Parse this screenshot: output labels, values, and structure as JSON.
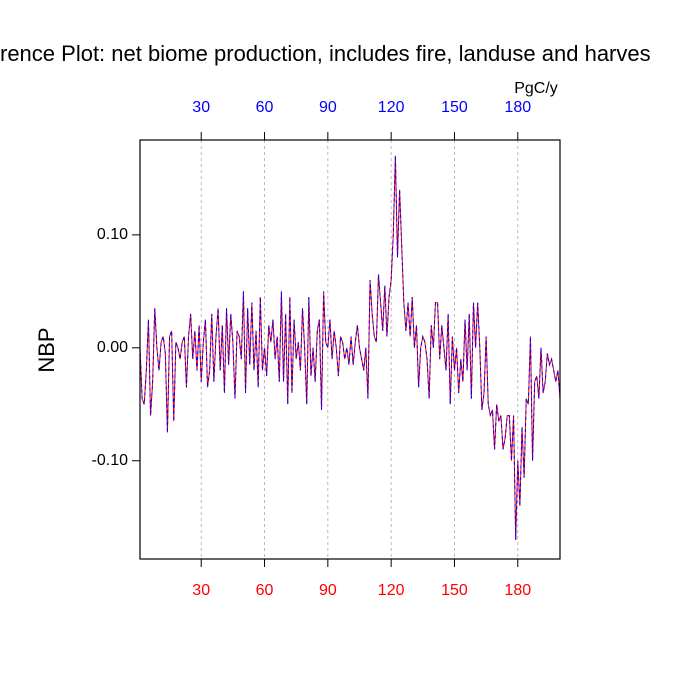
{
  "chart_data": {
    "type": "line",
    "title": "rence Plot: net biome production, includes fire, landuse and harves",
    "ylabel": "NBP",
    "units": "PgC/y",
    "x": [
      1,
      2,
      3,
      4,
      5,
      6,
      7,
      8,
      9,
      10,
      11,
      12,
      13,
      14,
      15,
      16,
      17,
      18,
      19,
      20,
      21,
      22,
      23,
      24,
      25,
      26,
      27,
      28,
      29,
      30,
      31,
      32,
      33,
      34,
      35,
      36,
      37,
      38,
      39,
      40,
      41,
      42,
      43,
      44,
      45,
      46,
      47,
      48,
      49,
      50,
      51,
      52,
      53,
      54,
      55,
      56,
      57,
      58,
      59,
      60,
      61,
      62,
      63,
      64,
      65,
      66,
      67,
      68,
      69,
      70,
      71,
      72,
      73,
      74,
      75,
      76,
      77,
      78,
      79,
      80,
      81,
      82,
      83,
      84,
      85,
      86,
      87,
      88,
      89,
      90,
      91,
      92,
      93,
      94,
      95,
      96,
      97,
      98,
      99,
      100,
      101,
      102,
      103,
      104,
      105,
      106,
      107,
      108,
      109,
      110,
      111,
      112,
      113,
      114,
      115,
      116,
      117,
      118,
      119,
      120,
      121,
      122,
      123,
      124,
      125,
      126,
      127,
      128,
      129,
      130,
      131,
      132,
      133,
      134,
      135,
      136,
      137,
      138,
      139,
      140,
      141,
      142,
      143,
      144,
      145,
      146,
      147,
      148,
      149,
      150,
      151,
      152,
      153,
      154,
      155,
      156,
      157,
      158,
      159,
      160,
      161,
      162,
      163,
      164,
      165,
      166,
      167,
      168,
      169,
      170,
      171,
      172,
      173,
      174,
      175,
      176,
      177,
      178,
      179,
      180,
      181,
      182,
      183,
      184,
      185,
      186,
      187,
      188,
      189,
      190,
      191,
      192,
      193,
      194,
      195,
      196,
      197,
      198,
      199,
      200
    ],
    "series": [
      {
        "color": "#ff0000",
        "values": [
          0.0,
          -0.045,
          -0.05,
          -0.02,
          0.025,
          -0.06,
          -0.03,
          0.035,
          0.0,
          -0.02,
          0.005,
          0.01,
          -0.005,
          -0.075,
          0.01,
          0.015,
          -0.065,
          0.005,
          0.0,
          -0.01,
          0.005,
          0.01,
          -0.035,
          0.01,
          0.03,
          -0.01,
          0.015,
          -0.02,
          0.02,
          -0.03,
          0.005,
          0.025,
          -0.035,
          -0.02,
          0.03,
          -0.03,
          0.01,
          0.035,
          -0.02,
          0.02,
          -0.04,
          0.035,
          -0.015,
          0.03,
          0.005,
          -0.045,
          0.015,
          0.01,
          -0.01,
          0.05,
          -0.04,
          0.035,
          -0.015,
          0.04,
          -0.02,
          0.015,
          -0.035,
          0.045,
          -0.02,
          0.0,
          -0.025,
          0.02,
          0.005,
          0.025,
          -0.01,
          0.01,
          -0.03,
          0.05,
          -0.03,
          0.03,
          -0.05,
          0.045,
          -0.04,
          0.025,
          -0.01,
          0.005,
          -0.02,
          0.035,
          0.0,
          -0.05,
          0.045,
          -0.025,
          0.0,
          -0.03,
          0.015,
          0.025,
          -0.055,
          0.05,
          0.005,
          0.0,
          0.025,
          -0.01,
          0.015,
          0.0,
          -0.025,
          0.01,
          0.005,
          -0.01,
          0.0,
          -0.015,
          0.01,
          -0.015,
          0.005,
          0.02,
          0.0,
          -0.01,
          -0.02,
          0.0,
          -0.045,
          0.06,
          0.03,
          0.01,
          0.005,
          0.065,
          0.04,
          0.015,
          0.055,
          0.01,
          0.045,
          0.06,
          0.1,
          0.17,
          0.08,
          0.14,
          0.09,
          0.04,
          0.015,
          0.04,
          0.01,
          0.045,
          0.0,
          0.02,
          -0.035,
          0.0,
          0.01,
          0.005,
          -0.01,
          -0.045,
          0.02,
          0.0,
          0.04,
          0.04,
          -0.01,
          0.02,
          0.0,
          -0.02,
          0.03,
          -0.05,
          0.01,
          -0.02,
          0.0,
          -0.04,
          -0.01,
          -0.03,
          0.025,
          -0.02,
          0.03,
          -0.045,
          0.04,
          0.0,
          0.04,
          0.0,
          -0.055,
          -0.04,
          0.01,
          -0.05,
          -0.06,
          -0.055,
          -0.09,
          -0.05,
          -0.065,
          -0.06,
          -0.09,
          -0.08,
          -0.06,
          -0.06,
          -0.1,
          -0.06,
          -0.17,
          -0.1,
          -0.14,
          -0.07,
          -0.115,
          -0.045,
          -0.05,
          0.01,
          -0.1,
          -0.03,
          -0.025,
          -0.045,
          0.0,
          -0.04,
          -0.03,
          -0.005,
          -0.015,
          -0.01,
          -0.02,
          -0.03,
          -0.02,
          -0.045
        ]
      },
      {
        "color": "#0000ff",
        "values": [
          0.0,
          -0.045,
          -0.05,
          -0.02,
          0.025,
          -0.06,
          -0.03,
          0.035,
          0.0,
          -0.02,
          0.005,
          0.01,
          -0.005,
          -0.075,
          0.01,
          0.015,
          -0.065,
          0.005,
          0.0,
          -0.01,
          0.005,
          0.01,
          -0.035,
          0.01,
          0.03,
          -0.01,
          0.015,
          -0.02,
          0.02,
          -0.03,
          0.005,
          0.025,
          -0.035,
          -0.02,
          0.03,
          -0.03,
          0.01,
          0.035,
          -0.02,
          0.02,
          -0.04,
          0.035,
          -0.015,
          0.03,
          0.005,
          -0.045,
          0.015,
          0.01,
          -0.01,
          0.05,
          -0.04,
          0.035,
          -0.015,
          0.04,
          -0.02,
          0.015,
          -0.035,
          0.045,
          -0.02,
          0.0,
          -0.025,
          0.02,
          0.005,
          0.025,
          -0.01,
          0.01,
          -0.03,
          0.05,
          -0.03,
          0.03,
          -0.05,
          0.045,
          -0.04,
          0.025,
          -0.01,
          0.005,
          -0.02,
          0.035,
          0.0,
          -0.05,
          0.045,
          -0.025,
          0.0,
          -0.03,
          0.015,
          0.025,
          -0.055,
          0.05,
          0.005,
          0.0,
          0.025,
          -0.01,
          0.015,
          0.0,
          -0.025,
          0.01,
          0.005,
          -0.01,
          0.0,
          -0.015,
          0.01,
          -0.015,
          0.005,
          0.02,
          0.0,
          -0.01,
          -0.02,
          0.0,
          -0.045,
          0.06,
          0.03,
          0.01,
          0.005,
          0.065,
          0.04,
          0.015,
          0.055,
          0.01,
          0.045,
          0.06,
          0.1,
          0.17,
          0.08,
          0.14,
          0.09,
          0.04,
          0.015,
          0.04,
          0.01,
          0.045,
          0.0,
          0.02,
          -0.035,
          0.0,
          0.01,
          0.005,
          -0.01,
          -0.045,
          0.02,
          0.0,
          0.04,
          0.04,
          -0.01,
          0.02,
          0.0,
          -0.02,
          0.03,
          -0.05,
          0.01,
          -0.02,
          0.0,
          -0.04,
          -0.01,
          -0.03,
          0.025,
          -0.02,
          0.03,
          -0.045,
          0.04,
          0.0,
          0.04,
          0.0,
          -0.055,
          -0.04,
          0.01,
          -0.05,
          -0.06,
          -0.055,
          -0.09,
          -0.05,
          -0.065,
          -0.06,
          -0.09,
          -0.08,
          -0.06,
          -0.06,
          -0.1,
          -0.06,
          -0.17,
          -0.1,
          -0.14,
          -0.07,
          -0.115,
          -0.045,
          -0.05,
          0.01,
          -0.1,
          -0.03,
          -0.025,
          -0.045,
          0.0,
          -0.04,
          -0.03,
          -0.005,
          -0.015,
          -0.01,
          -0.02,
          -0.03,
          -0.02,
          -0.045
        ]
      }
    ],
    "xlim": [
      1,
      200
    ],
    "xticks": [
      30,
      60,
      90,
      120,
      150,
      180
    ],
    "ylim": [
      -0.187,
      0.184
    ],
    "yticks": [
      {
        "value": -0.1,
        "label": "-0.10"
      },
      {
        "value": 0,
        "label": "0.00"
      },
      {
        "value": 0.1,
        "label": "0.10"
      }
    ],
    "grid": true,
    "top_tick_color": "#0000ff",
    "bottom_tick_color": "#ff0000"
  }
}
